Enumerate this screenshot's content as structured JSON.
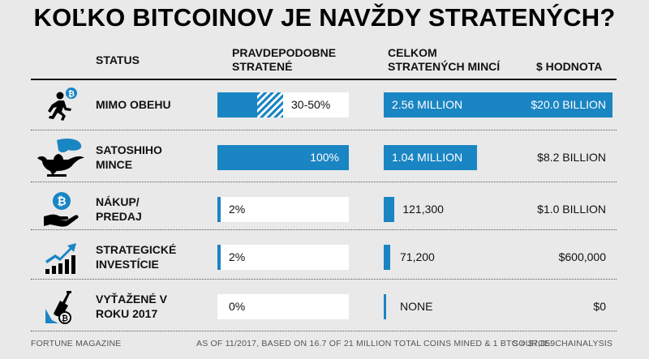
{
  "title": "KOĽKO BITCOINOV JE NAVŽDY STRATENÝCH?",
  "headers": {
    "status": "STATUS",
    "prob_line1": "PRAVDEPODOBNE",
    "prob_line2": "STRATENÉ",
    "coins_line1": "CELKOM",
    "coins_line2": "STRATENÝCH MINCÍ",
    "value": "$ HODNOTA"
  },
  "colors": {
    "bar": "#1a85c3",
    "cell": "#ffffff",
    "background": "#e9e9e9"
  },
  "chart_data": {
    "type": "table",
    "title": "KOĽKO BITCOINOV JE NAVŽDY STRATENÝCH?",
    "columns": [
      "STATUS",
      "PRAVDEPODOBNE STRATENÉ",
      "CELKOM STRATENÝCH MINCÍ",
      "$ HODNOTA"
    ],
    "rows": [
      {
        "icon": "running-man-bitcoin-icon",
        "status_line1": "MIMO OBEHU",
        "status_line2": "",
        "prob_label": "30-50%",
        "prob_min": 0.3,
        "prob_max": 0.5,
        "coins_label": "2.56 MILLION",
        "coins": 2560000,
        "value_label": "$20.0 BILLION",
        "value": 20000000000
      },
      {
        "icon": "magic-lamp-icon",
        "status_line1": "SATOSHIHO",
        "status_line2": "MINCE",
        "prob_label": "100%",
        "prob_min": 1.0,
        "prob_max": 1.0,
        "coins_label": "1.04 MILLION",
        "coins": 1040000,
        "value_label": "$8.2 BILLION",
        "value": 8200000000
      },
      {
        "icon": "hand-bitcoin-icon",
        "status_line1": "NÁKUP/",
        "status_line2": "PREDAJ",
        "prob_label": "2%",
        "prob_min": 0.02,
        "prob_max": 0.02,
        "coins_label": "121,300",
        "coins": 121300,
        "value_label": "$1.0 BILLION",
        "value": 1000000000
      },
      {
        "icon": "growth-chart-icon",
        "status_line1": "STRATEGICKÉ",
        "status_line2": "INVESTÍCIE",
        "prob_label": "2%",
        "prob_min": 0.02,
        "prob_max": 0.02,
        "coins_label": "71,200",
        "coins": 71200,
        "value_label": "$600,000",
        "value": 600000
      },
      {
        "icon": "shovel-bitcoin-icon",
        "status_line1": "VYŤAŽENÉ V",
        "status_line2": "ROKU 2017",
        "prob_label": "0%",
        "prob_min": 0,
        "prob_max": 0,
        "coins_label": "NONE",
        "coins": 0,
        "value_label": "$0",
        "value": 0
      }
    ]
  },
  "footer": {
    "left": "FORTUNE MAGAZINE",
    "center": "AS OF 11/2017, BASED ON 16.7 OF 21 MILLION TOTAL COINS MINED & 1 BTC = $7,859",
    "right": "SOURCE: CHAINALYSIS"
  }
}
